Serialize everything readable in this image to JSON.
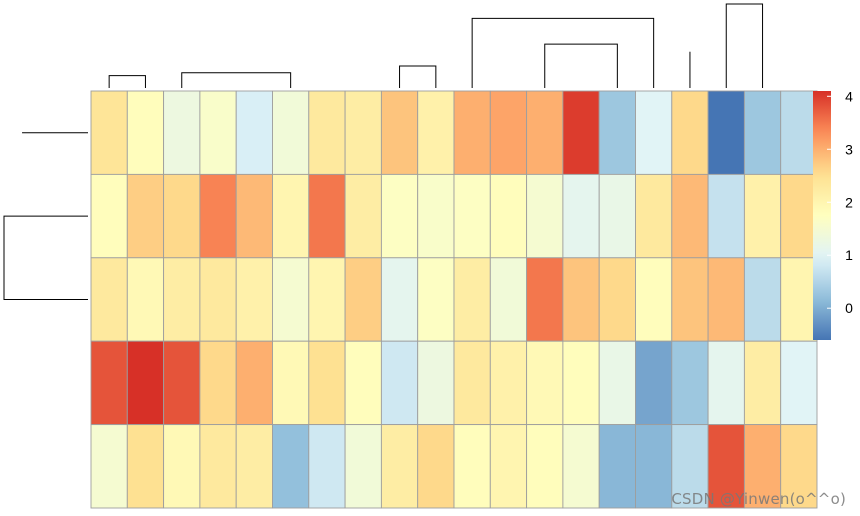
{
  "chart_data": {
    "type": "heatmap",
    "title": "",
    "rows": 5,
    "columns": 20,
    "values": [
      [
        2.4,
        1.8,
        1.3,
        1.6,
        0.9,
        1.4,
        2.3,
        2.2,
        2.8,
        2.1,
        3.0,
        3.1,
        3.0,
        4.0,
        0.3,
        1.0,
        2.6,
        -0.6,
        0.3,
        0.6
      ],
      [
        1.8,
        2.7,
        2.6,
        3.4,
        2.9,
        2.0,
        3.5,
        2.2,
        1.7,
        1.6,
        1.7,
        1.8,
        1.5,
        1.1,
        1.2,
        2.3,
        2.9,
        0.7,
        2.1,
        2.6
      ],
      [
        2.3,
        1.9,
        2.2,
        2.3,
        2.1,
        1.5,
        2.0,
        2.7,
        1.1,
        1.7,
        2.2,
        1.4,
        3.5,
        2.8,
        2.6,
        1.8,
        2.8,
        2.9,
        0.6,
        2.0
      ],
      [
        3.8,
        4.1,
        3.8,
        2.6,
        3.0,
        1.9,
        2.5,
        1.8,
        0.8,
        1.3,
        2.3,
        2.1,
        1.9,
        1.8,
        1.2,
        -0.1,
        0.3,
        1.1,
        2.2,
        1.0
      ],
      [
        1.5,
        2.5,
        1.9,
        2.3,
        2.2,
        0.2,
        0.8,
        1.4,
        2.2,
        2.6,
        1.8,
        2.0,
        1.8,
        1.5,
        0.1,
        0.1,
        0.6,
        3.8,
        3.0,
        2.6
      ]
    ],
    "color_scale": {
      "min": -0.6,
      "max": 4.1,
      "colors": [
        "#4575b4",
        "#91bfdb",
        "#e0f3f8",
        "#ffffbf",
        "#fee090",
        "#fc8d59",
        "#d73027"
      ],
      "ticks": [
        0,
        1,
        2,
        3,
        4
      ],
      "tick_labels": [
        "0",
        "1",
        "2",
        "3",
        "4"
      ]
    },
    "column_dendrogram_merges": [
      [
        5,
        6,
        5
      ],
      [
        7,
        8,
        9
      ],
      [
        -1,
        -2,
        13
      ],
      [
        9,
        10,
        4
      ],
      [
        4,
        -4,
        19
      ],
      [
        2,
        -5,
        20
      ],
      [
        13,
        14,
        6
      ],
      [
        12,
        -7,
        12
      ],
      [
        11,
        -8,
        25
      ],
      [
        -3,
        -6,
        16
      ],
      [
        -9,
        -10,
        23
      ],
      [
        16,
        17,
        13
      ],
      [
        15,
        -12,
        37
      ],
      [
        18,
        19,
        12
      ],
      [
        20,
        -14,
        28
      ],
      [
        -13,
        -15,
        46
      ],
      [
        -11,
        -16,
        73
      ],
      [
        -17,
        1,
        38
      ],
      [
        -18,
        -19,
        88
      ]
    ],
    "row_dendrogram_merges": [
      [
        2,
        3,
        84
      ],
      [
        4,
        5,
        93
      ],
      [
        -1,
        1,
        84
      ],
      [
        -2,
        -3,
        107
      ]
    ]
  },
  "watermark": "CSDN @Yinwen(o^^o)"
}
